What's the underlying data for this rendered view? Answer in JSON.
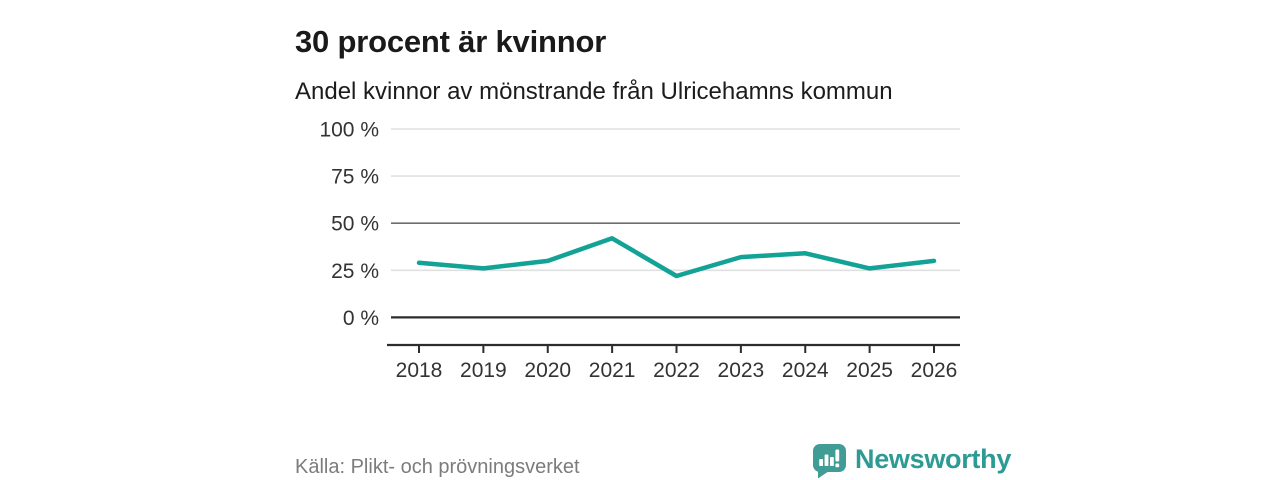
{
  "header": {
    "title": "30 procent är kvinnor",
    "subtitle": "Andel kvinnor av mönstrande från Ulricehamns kommun"
  },
  "chart_data": {
    "type": "line",
    "title": "30 procent är kvinnor",
    "subtitle": "Andel kvinnor av mönstrande från Ulricehamns kommun",
    "x": [
      2018,
      2019,
      2020,
      2021,
      2022,
      2023,
      2024,
      2025,
      2026
    ],
    "values": [
      29,
      26,
      30,
      42,
      22,
      32,
      34,
      26,
      30
    ],
    "unit": "%",
    "ylim": [
      0,
      100
    ],
    "yticks": [
      0,
      25,
      50,
      75,
      100
    ],
    "ytick_suffix": " %",
    "grid": true,
    "emphasized_gridlines": [
      0,
      50
    ],
    "legend": "none"
  },
  "footer": {
    "source": "Källa: Plikt- och prövningsverket",
    "brand": "Newsworthy"
  },
  "colors": {
    "line": "#12a296",
    "grid_light": "#e0e0e0",
    "grid_mid": "#6e6e6e",
    "axis_dark": "#2d2d2d",
    "tick_text": "#333333",
    "logo_bubble": "#3f9d96",
    "logo_text": "#2d9b94"
  }
}
